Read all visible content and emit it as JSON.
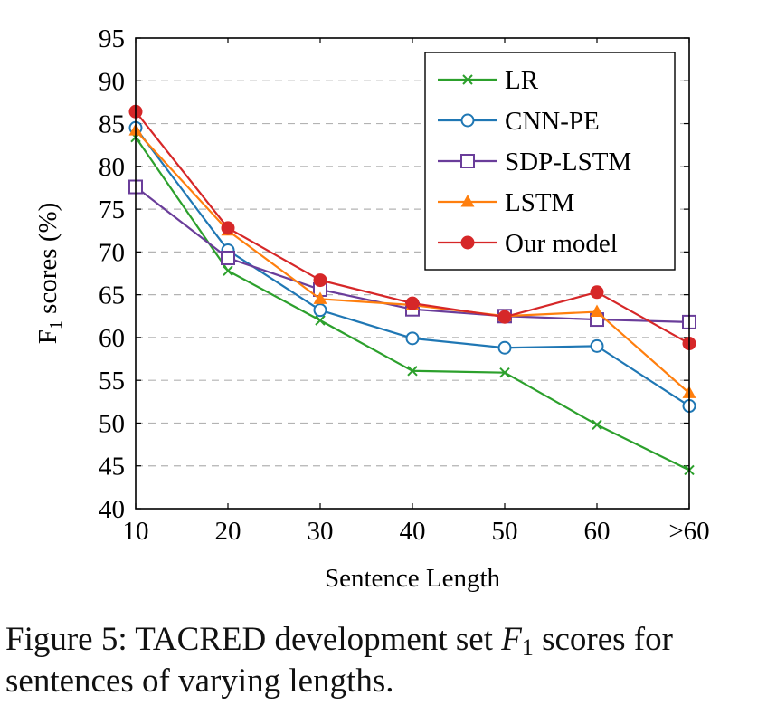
{
  "chart_data": {
    "type": "line",
    "categories": [
      "10",
      "20",
      "30",
      "40",
      "50",
      "60",
      ">60"
    ],
    "xlabel": "Sentence Length",
    "ylabel": "F",
    "ylabel_sub": "1",
    "ylabel_suffix": " scores (%)",
    "ylim": [
      40,
      95
    ],
    "yticks": [
      40,
      45,
      50,
      55,
      60,
      65,
      70,
      75,
      80,
      85,
      90,
      95
    ],
    "grid": "horizontal-dashed",
    "legend_position": "top-right",
    "series": [
      {
        "name": "LR",
        "color": "#2ca02c",
        "marker": "x",
        "values": [
          83.4,
          67.8,
          62.0,
          56.1,
          55.9,
          49.8,
          44.5
        ]
      },
      {
        "name": "CNN-PE",
        "color": "#1f77b4",
        "marker": "circle-open",
        "values": [
          84.5,
          70.2,
          63.2,
          59.9,
          58.8,
          59.0,
          52.0
        ]
      },
      {
        "name": "SDP-LSTM",
        "color": "#6a3d9a",
        "marker": "square-open",
        "values": [
          77.6,
          69.3,
          65.6,
          63.3,
          62.5,
          62.1,
          61.8
        ]
      },
      {
        "name": "LSTM",
        "color": "#ff7f0e",
        "marker": "triangle",
        "values": [
          84.2,
          72.5,
          64.5,
          63.8,
          62.5,
          63.0,
          53.5
        ]
      },
      {
        "name": "Our model",
        "color": "#d62728",
        "marker": "circle",
        "values": [
          86.4,
          72.8,
          66.7,
          64.0,
          62.4,
          65.3,
          59.3
        ]
      }
    ]
  },
  "caption": {
    "prefix": "Figure 5: TACRED development set ",
    "math_var": "F",
    "math_sub": "1",
    "suffix": " scores for sentences of varying lengths."
  }
}
